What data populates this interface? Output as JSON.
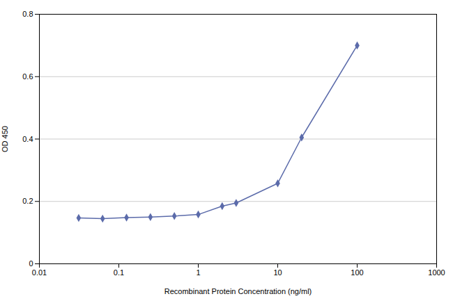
{
  "chart_data": {
    "type": "line",
    "x": [
      0.03125,
      0.0625,
      0.125,
      0.25,
      0.5,
      1.0,
      2.0,
      3.0,
      10.0,
      20.0,
      100.0
    ],
    "values": [
      0.147,
      0.145,
      0.148,
      0.15,
      0.153,
      0.158,
      0.185,
      0.195,
      0.258,
      0.405,
      0.7
    ],
    "color": "#5b6baa",
    "marker": "diamond",
    "xlabel": "Recombinant Protein Concentration (ng/ml)",
    "ylabel": "OD 450",
    "log": "x",
    "xlim": [
      0.01,
      1000
    ],
    "xticks": [
      0.01,
      0.1,
      1,
      10,
      100,
      1000
    ],
    "ylim": [
      0,
      0.8
    ],
    "yticks": [
      0,
      0.2,
      0.4,
      0.6,
      0.8
    ],
    "grid": "y"
  }
}
